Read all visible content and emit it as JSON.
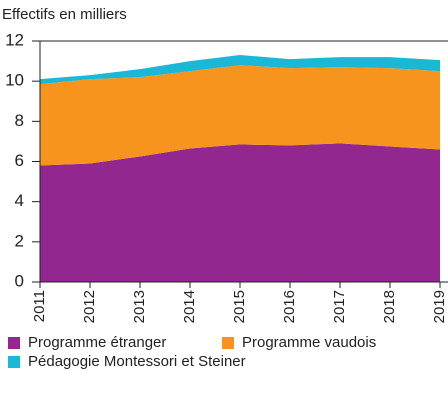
{
  "chart_data": {
    "type": "stacked_area",
    "y_axis_label": "Effectifs en milliers",
    "categories": [
      "2011",
      "2012",
      "2013",
      "2014",
      "2015",
      "2016",
      "2017",
      "2018",
      "2019"
    ],
    "series": [
      {
        "name": "Programme étranger",
        "color": "#92278f",
        "values": [
          5.8,
          5.9,
          6.25,
          6.65,
          6.85,
          6.8,
          6.9,
          6.75,
          6.6
        ]
      },
      {
        "name": "Programme vaudois",
        "color": "#f7941d",
        "values": [
          4.05,
          4.2,
          3.95,
          3.85,
          3.95,
          3.85,
          3.8,
          3.9,
          3.9
        ]
      },
      {
        "name": "Pédagogie Montessori et Steiner",
        "color": "#1ab7d6",
        "values": [
          0.25,
          0.2,
          0.4,
          0.5,
          0.5,
          0.45,
          0.5,
          0.55,
          0.55
        ]
      }
    ],
    "ylim": [
      0,
      12
    ],
    "yticks": [
      0,
      2,
      4,
      6,
      8,
      10,
      12
    ],
    "grid": true
  }
}
